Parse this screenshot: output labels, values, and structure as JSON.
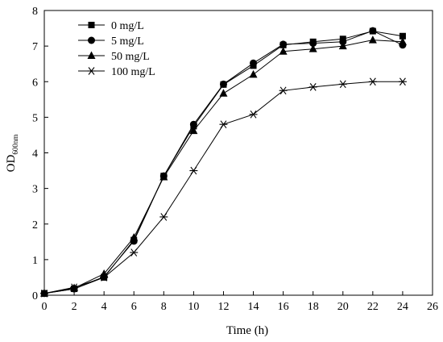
{
  "chart_data": {
    "type": "line",
    "title": "",
    "xlabel": "Time (h)",
    "ylabel": "OD",
    "ylabel_subscript": "600nm",
    "xlim": [
      0,
      26
    ],
    "ylim": [
      0,
      8
    ],
    "xticks": [
      0,
      2,
      4,
      6,
      8,
      10,
      12,
      14,
      16,
      18,
      20,
      22,
      24,
      26
    ],
    "yticks": [
      0,
      1,
      2,
      3,
      4,
      5,
      6,
      7,
      8
    ],
    "grid": false,
    "legend_position": "top-left",
    "x": [
      0,
      2,
      4,
      6,
      8,
      10,
      12,
      14,
      16,
      18,
      20,
      22,
      24
    ],
    "series": [
      {
        "name": "0 mg/L",
        "marker": "square",
        "values": [
          0.05,
          0.18,
          0.5,
          1.55,
          3.35,
          4.75,
          5.92,
          6.45,
          7.03,
          7.12,
          7.2,
          7.42,
          7.28
        ]
      },
      {
        "name": "5 mg/L",
        "marker": "circle",
        "values": [
          0.05,
          0.18,
          0.52,
          1.52,
          3.35,
          4.8,
          5.93,
          6.52,
          7.05,
          7.08,
          7.12,
          7.43,
          7.03
        ]
      },
      {
        "name": "50 mg/L",
        "marker": "triangle",
        "values": [
          0.05,
          0.2,
          0.6,
          1.62,
          3.32,
          4.62,
          5.67,
          6.2,
          6.85,
          6.92,
          7.0,
          7.17,
          7.12
        ]
      },
      {
        "name": "100 mg/L",
        "marker": "asterisk",
        "values": [
          0.05,
          0.22,
          0.5,
          1.2,
          2.2,
          3.5,
          4.8,
          5.08,
          5.75,
          5.85,
          5.93,
          6.0,
          6.0
        ]
      }
    ]
  }
}
